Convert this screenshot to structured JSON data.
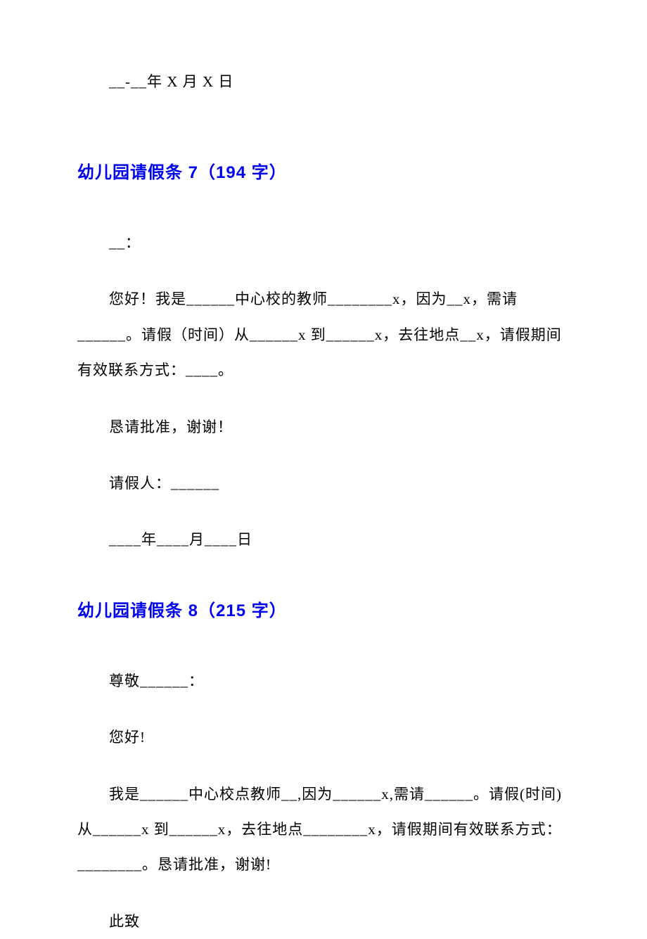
{
  "top_date": "__-__年 X 月 X 日",
  "section7": {
    "heading": "幼儿园请假条 7（194 字）",
    "greet": "__：",
    "body": "您好！我是______中心校的教师________x，因为__x，需请______。请假（时间）从______x 到______x，去往地点__x，请假期间有效联系方式：____。",
    "approve": "恳请批准，谢谢！",
    "signer": "请假人：______",
    "date": "____年____月____日"
  },
  "section8": {
    "heading": "幼儿园请假条 8（215 字）",
    "greet": "尊敬______：",
    "hello": "您好!",
    "body": "我是______中心校点教师__,因为______x,需请______。请假(时间)从______x 到______x，去往地点________x，请假期间有效联系方式：________。恳请批准，谢谢!",
    "closing": "此致"
  }
}
